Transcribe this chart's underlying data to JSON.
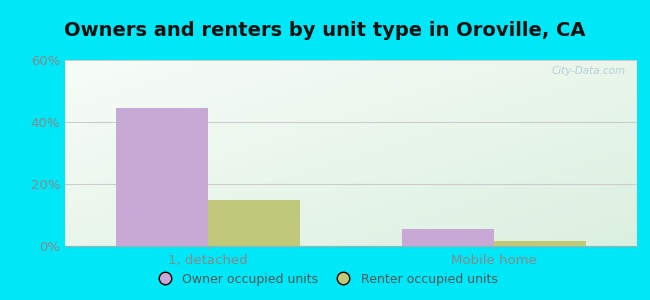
{
  "title": "Owners and renters by unit type in Oroville, CA",
  "categories": [
    "1, detached",
    "Mobile home"
  ],
  "owner_values": [
    44.5,
    5.5
  ],
  "renter_values": [
    15.0,
    1.5
  ],
  "owner_color": "#c8a8d4",
  "renter_color": "#c0c87a",
  "ylim": [
    0,
    60
  ],
  "yticks": [
    0,
    20,
    40,
    60
  ],
  "ytick_labels": [
    "0%",
    "20%",
    "40%",
    "60%"
  ],
  "bar_width": 0.32,
  "background_cyan": "#00e8f8",
  "legend_owner": "Owner occupied units",
  "legend_renter": "Renter occupied units",
  "watermark": "City-Data.com",
  "title_fontsize": 14,
  "label_fontsize": 9.5,
  "tick_color": "#888888",
  "grid_color": "#cccccc"
}
